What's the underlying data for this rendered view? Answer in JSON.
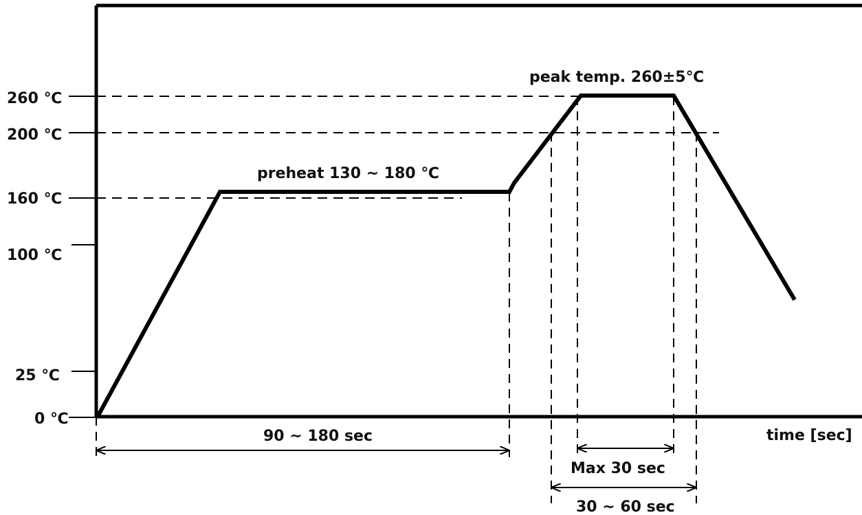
{
  "y_axis": {
    "ticks": [
      {
        "value": 0,
        "label": "0 ℃"
      },
      {
        "value": 25,
        "label": "25 ℃"
      },
      {
        "value": 100,
        "label": "100 ℃"
      },
      {
        "value": 160,
        "label": "160 ℃"
      },
      {
        "value": 200,
        "label": "200 ℃"
      },
      {
        "value": 260,
        "label": "260 ℃"
      }
    ]
  },
  "x_axis": {
    "label": "time [sec]"
  },
  "annotations": {
    "preheat": "preheat 130 ~ 180 ℃",
    "peak": "peak temp. 260±5℃",
    "preheat_duration": "90 ~ 180 sec",
    "peak_duration": "Max 30 sec",
    "above_200_duration": "30 ~ 60 sec"
  },
  "profile": {
    "description_points_celsius": [
      0,
      160,
      160,
      260,
      260
    ],
    "colors": {
      "line": "#000000",
      "background": "#ffffff"
    }
  }
}
